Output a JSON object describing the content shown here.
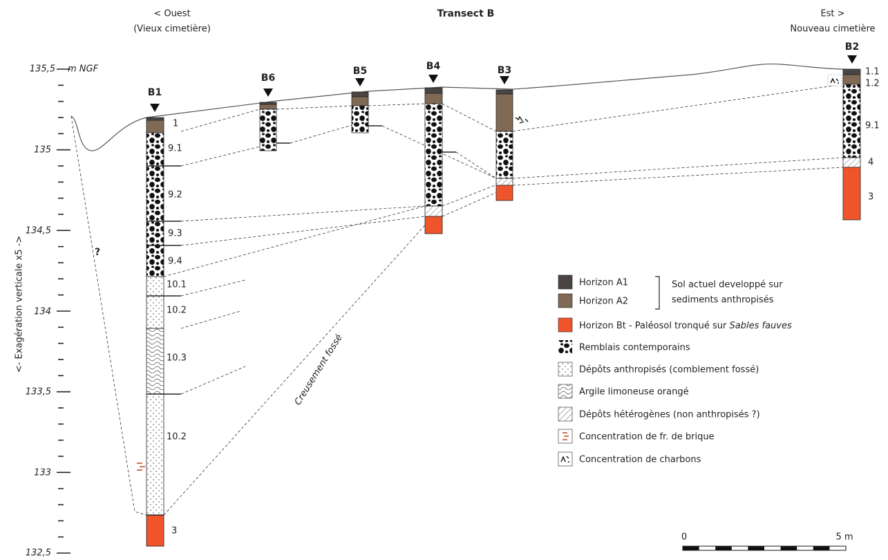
{
  "header": {
    "west": "< Ouest",
    "west_sub": "(Vieux cimetière)",
    "title": "Transect B",
    "east": "Est >",
    "east_sub": "Nouveau cimetière"
  },
  "axis": {
    "label": "<- Exagération verticale x5 ->",
    "unit": "m NGF",
    "ticks": [
      "135,5",
      "135",
      "134,5",
      "134",
      "133,5",
      "133",
      "132,5"
    ]
  },
  "boreholes": [
    {
      "name": "B1",
      "layers": [
        "1",
        "9.1",
        "9.2",
        "9.3",
        "9.4",
        "10.1",
        "10.2",
        "10.3",
        "10.2",
        "3"
      ]
    },
    {
      "name": "B6"
    },
    {
      "name": "B5"
    },
    {
      "name": "B4"
    },
    {
      "name": "B3"
    },
    {
      "name": "B2",
      "layers": [
        "1.1",
        "1.2",
        "9.1",
        "4",
        "3"
      ]
    }
  ],
  "annotations": {
    "question": "?",
    "ditch": "Creusement fossé"
  },
  "legend": {
    "a1": "Horizon A1",
    "a2": "Horizon A2",
    "brace_1": "Sol actuel developpé sur",
    "brace_2": "sediments anthropisés",
    "bt": "Horizon Bt - Paléosol tronqué sur ",
    "bt_italic": "Sables fauves",
    "remblais": "Remblais contemporains",
    "depots": "Dépôts anthropisés (comblement fossé)",
    "argile": "Argile limoneuse orangé",
    "heterogenes": "Dépôts hétérogènes (non anthropisés ?)",
    "brique": "Concentration de fr. de brique",
    "charbons": "Concentration de charbons"
  },
  "scale": {
    "start": "0",
    "end": "5 m"
  }
}
